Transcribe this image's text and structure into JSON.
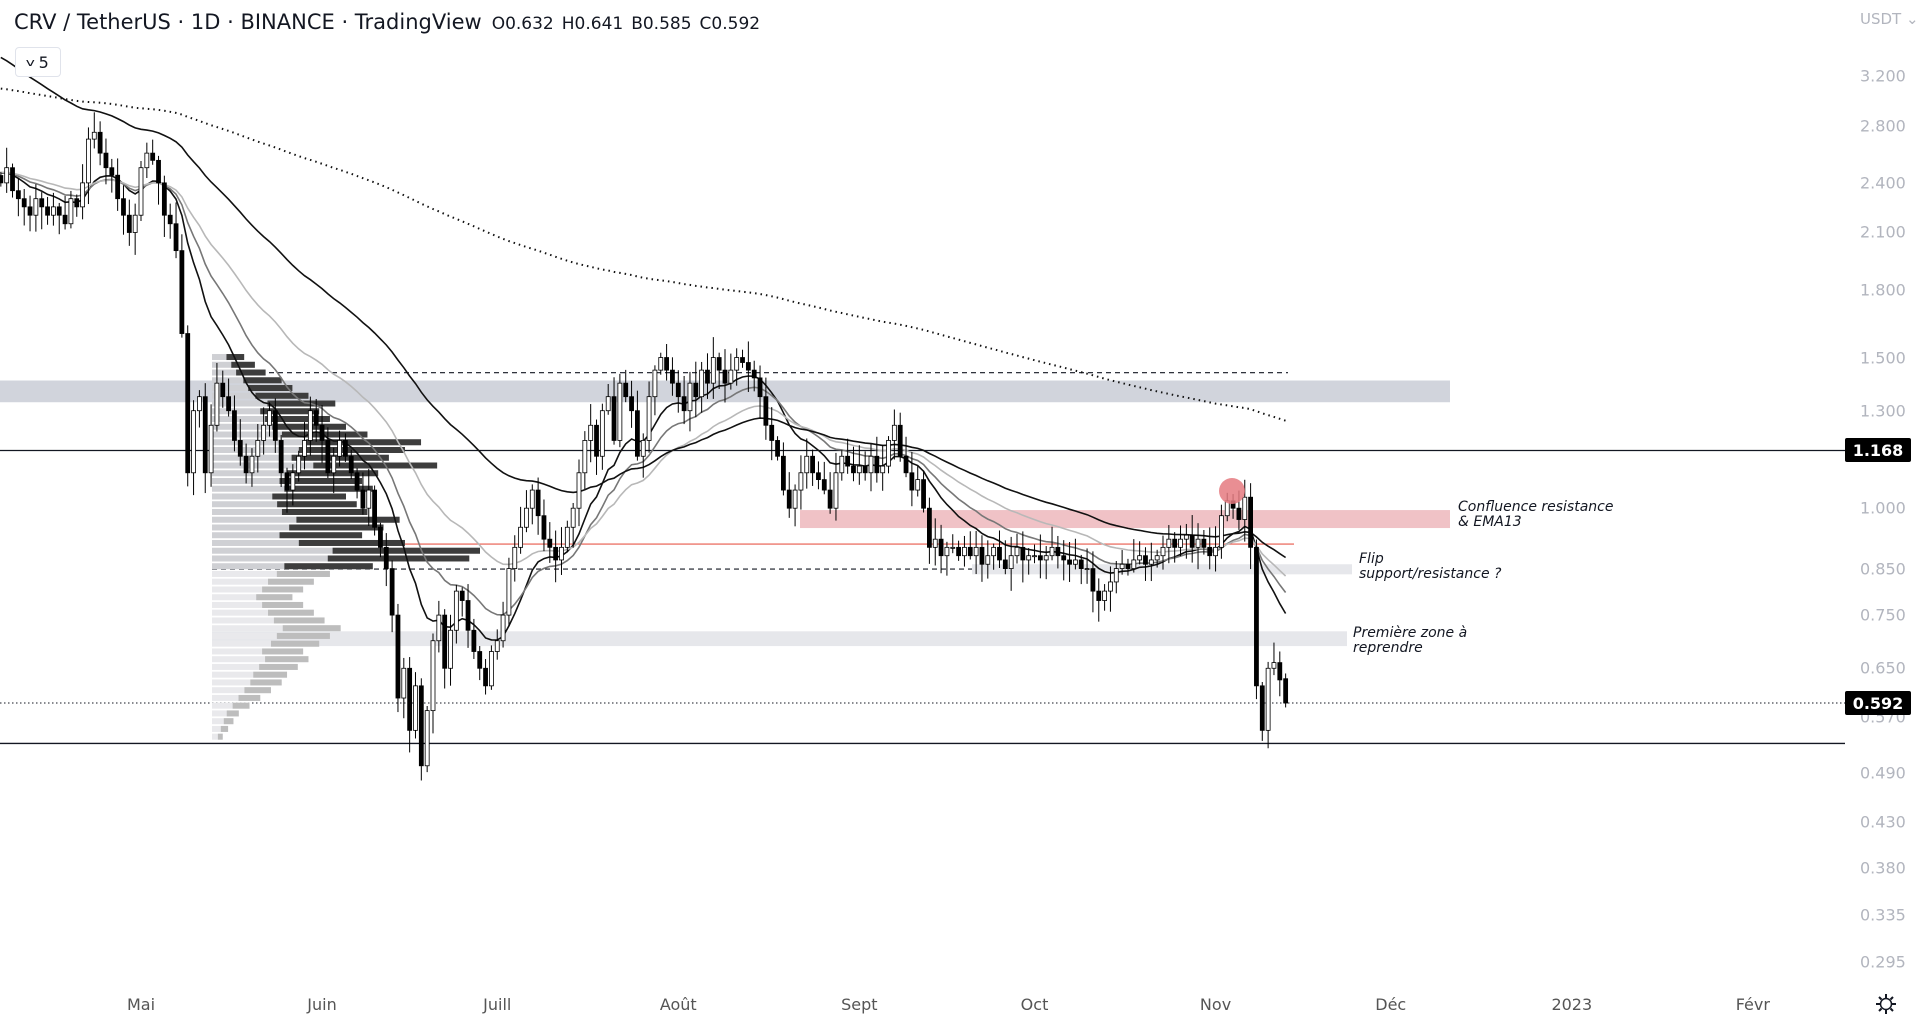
{
  "header": {
    "title": "CRV / TetherUS · 1D · BINANCE · TradingView",
    "open": "O0.632",
    "high": "H0.641",
    "low": "B0.585",
    "close": "C0.592",
    "indicators_toggle": "5"
  },
  "axis": {
    "currency": "USDT",
    "currency_chevron": "⌄",
    "settings_icon": "gear-icon"
  },
  "colors": {
    "up_fill": "#ffffff",
    "down_fill": "#000000",
    "zone_grey": "#d1d4dc",
    "zone_light": "#e6e7eb",
    "zone_pink": "#f0c2c6",
    "red_line": "#e8584a",
    "circle": "#e57a80"
  },
  "chart_data": {
    "type": "candlestick",
    "title": "CRV / TetherUS · 1D · BINANCE",
    "scale": "log",
    "ylim": [
      0.27,
      3.45
    ],
    "start_date": "2022-04-07",
    "y_ticks": [
      "3.200",
      "2.800",
      "2.400",
      "2.100",
      "1.800",
      "1.500",
      "1.300",
      "1.000",
      "0.850",
      "0.750",
      "0.650",
      "0.570",
      "0.490",
      "0.430",
      "0.380",
      "0.335",
      "0.295"
    ],
    "x_ticks": [
      {
        "label": "Mai",
        "day": 24
      },
      {
        "label": "Juin",
        "day": 55
      },
      {
        "label": "Juill",
        "day": 85
      },
      {
        "label": "Août",
        "day": 116
      },
      {
        "label": "Sept",
        "day": 147
      },
      {
        "label": "Oct",
        "day": 177
      },
      {
        "label": "Nov",
        "day": 208
      },
      {
        "label": "Déc",
        "day": 238
      },
      {
        "label": "2023",
        "day": 269
      },
      {
        "label": "Févr",
        "day": 300
      }
    ],
    "closes": [
      2.4,
      2.5,
      2.35,
      2.3,
      2.25,
      2.2,
      2.3,
      2.25,
      2.2,
      2.25,
      2.2,
      2.15,
      2.3,
      2.25,
      2.4,
      2.7,
      2.75,
      2.6,
      2.5,
      2.45,
      2.3,
      2.2,
      2.1,
      2.2,
      2.5,
      2.6,
      2.55,
      2.4,
      2.2,
      2.15,
      2.0,
      1.6,
      1.1,
      1.3,
      1.35,
      1.1,
      1.25,
      1.4,
      1.35,
      1.3,
      1.2,
      1.15,
      1.1,
      1.15,
      1.2,
      1.25,
      1.3,
      1.2,
      1.1,
      1.05,
      1.1,
      1.15,
      1.2,
      1.3,
      1.25,
      1.2,
      1.1,
      1.15,
      1.2,
      1.15,
      1.1,
      1.05,
      1.0,
      1.05,
      0.95,
      0.9,
      0.85,
      0.75,
      0.6,
      0.65,
      0.55,
      0.62,
      0.5,
      0.58,
      0.7,
      0.75,
      0.65,
      0.72,
      0.8,
      0.78,
      0.72,
      0.68,
      0.65,
      0.62,
      0.68,
      0.7,
      0.75,
      0.85,
      0.9,
      0.95,
      1.0,
      1.05,
      0.98,
      0.92,
      0.9,
      0.87,
      0.9,
      0.95,
      1.0,
      1.1,
      1.2,
      1.25,
      1.15,
      1.3,
      1.35,
      1.2,
      1.4,
      1.35,
      1.3,
      1.15,
      1.2,
      1.35,
      1.45,
      1.5,
      1.45,
      1.4,
      1.35,
      1.3,
      1.4,
      1.35,
      1.45,
      1.4,
      1.5,
      1.45,
      1.4,
      1.45,
      1.5,
      1.48,
      1.45,
      1.42,
      1.35,
      1.25,
      1.2,
      1.15,
      1.05,
      1.0,
      1.05,
      1.1,
      1.15,
      1.1,
      1.08,
      1.05,
      1.0,
      1.1,
      1.15,
      1.12,
      1.1,
      1.12,
      1.1,
      1.15,
      1.1,
      1.12,
      1.2,
      1.25,
      1.15,
      1.1,
      1.05,
      1.08,
      1.0,
      0.9,
      0.92,
      0.88,
      0.9,
      0.9,
      0.88,
      0.9,
      0.88,
      0.9,
      0.86,
      0.88,
      0.9,
      0.87,
      0.85,
      0.88,
      0.9,
      0.87,
      0.88,
      0.88,
      0.87,
      0.88,
      0.9,
      0.88,
      0.87,
      0.86,
      0.87,
      0.85,
      0.85,
      0.8,
      0.78,
      0.8,
      0.82,
      0.85,
      0.86,
      0.85,
      0.87,
      0.88,
      0.86,
      0.87,
      0.88,
      0.9,
      0.92,
      0.9,
      0.92,
      0.93,
      0.9,
      0.92,
      0.9,
      0.88,
      0.9,
      0.98,
      1.02,
      1.0,
      0.97,
      1.03,
      0.9,
      0.62,
      0.55,
      0.65,
      0.66,
      0.63,
      0.632
    ],
    "last_candle": {
      "open": 0.632,
      "high": 0.641,
      "low": 0.585,
      "close": 0.592
    },
    "moving_averages": [
      {
        "name": "EMA13",
        "period": 13,
        "color": "#111111"
      },
      {
        "name": "EMA21",
        "period": 21,
        "color": "#777777"
      },
      {
        "name": "EMA34",
        "period": 34,
        "color": "#b8b8b8"
      },
      {
        "name": "EMA55",
        "period": 55,
        "color": "#111111",
        "seed": 3.4
      },
      {
        "name": "MA200",
        "period": 200,
        "color": "#111111",
        "seed": 3.1,
        "dotted": true
      }
    ],
    "volume_profile": {
      "from": 0.54,
      "to": 1.5,
      "split_price": 0.85,
      "volumes": [
        4,
        6,
        8,
        10,
        14,
        18,
        22,
        26,
        28,
        32,
        36,
        34,
        40,
        44,
        48,
        42,
        38,
        34,
        30,
        34,
        38,
        44,
        60,
        96,
        100,
        72,
        56,
        64,
        70,
        58,
        54,
        50,
        60,
        56,
        62,
        84,
        66,
        72,
        78,
        58,
        50,
        44,
        40,
        46,
        36,
        30,
        26,
        20,
        16,
        12
      ]
    },
    "current_price": 0.592,
    "price_tags": [
      "1.168",
      "0.592"
    ],
    "levels": [
      {
        "kind": "zone",
        "name": "grey-resistance-zone",
        "from": 1.33,
        "to": 1.41,
        "color": "#d1d4dc"
      },
      {
        "kind": "dashed",
        "name": "dashed-high-line",
        "price": 1.44
      },
      {
        "kind": "solid",
        "name": "level-line-1168",
        "price": 1.168
      },
      {
        "kind": "zone",
        "name": "confluence-resistance-zone",
        "from": 0.948,
        "to": 0.995,
        "color": "#f0c2c6"
      },
      {
        "kind": "red",
        "name": "red-level-line",
        "price": 0.908
      },
      {
        "kind": "dashed",
        "name": "dashed-support-line",
        "price": 0.849
      },
      {
        "kind": "zone",
        "name": "flip-zone",
        "from": 0.837,
        "to": 0.86,
        "color": "#e6e7eb"
      },
      {
        "kind": "zone",
        "name": "premiere-zone",
        "from": 0.69,
        "to": 0.718,
        "color": "#e6e7eb"
      },
      {
        "kind": "solid",
        "name": "yearly-low-line",
        "price": 0.531
      }
    ],
    "annotations": [
      {
        "name": "confluence-note",
        "text": "Confluence resistance\n& EMA13"
      },
      {
        "name": "flip-note",
        "text": "Flip\nsupport/resistance ?"
      },
      {
        "name": "premiere-note",
        "text": "Première zone à\nreprendre"
      }
    ]
  }
}
